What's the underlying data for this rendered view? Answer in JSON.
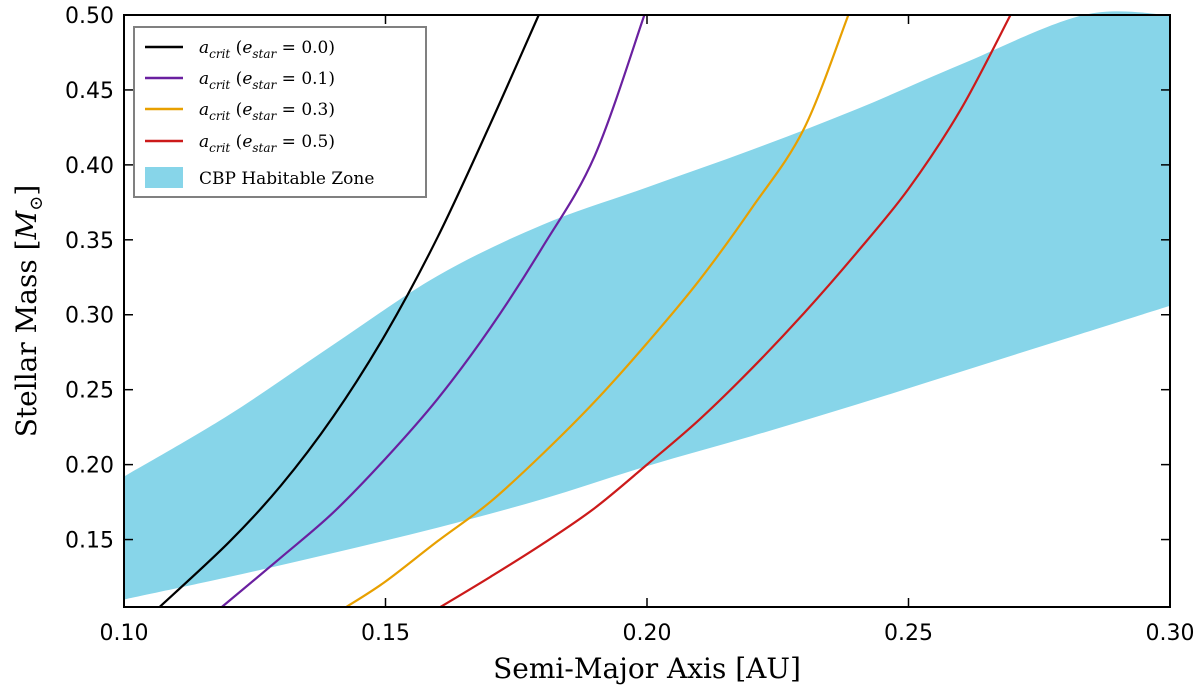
{
  "chart_data": {
    "type": "line",
    "xlabel": "Semi-Major Axis [AU]",
    "ylabel": "Stellar Mass [M☉]",
    "ylabel_text": "Stellar Mass [",
    "ylabel_symbol": "M",
    "ylabel_sub": "⊙",
    "ylabel_close": "]",
    "xlim": [
      0.1,
      0.3
    ],
    "ylim": [
      0.105,
      0.5
    ],
    "xticks": [
      0.1,
      0.15,
      0.2,
      0.25,
      0.3
    ],
    "xtick_labels": [
      "0.10",
      "0.15",
      "0.20",
      "0.25",
      "0.30"
    ],
    "yticks": [
      0.15,
      0.2,
      0.25,
      0.3,
      0.35,
      0.4,
      0.45,
      0.5
    ],
    "ytick_labels": [
      "0.15",
      "0.20",
      "0.25",
      "0.30",
      "0.35",
      "0.40",
      "0.45",
      "0.50"
    ],
    "grid": false,
    "legend_position": "top-left",
    "series": [
      {
        "name": "a_crit (e_star = 0.0)",
        "sym": "a",
        "sub": "crit",
        "param": "e",
        "param_sub": "star",
        "value": "0.0",
        "color": "#000000",
        "x": [
          0.1068,
          0.12,
          0.13,
          0.14,
          0.15,
          0.16,
          0.17,
          0.1793
        ],
        "y": [
          0.105,
          0.148,
          0.186,
          0.232,
          0.287,
          0.352,
          0.427,
          0.5
        ]
      },
      {
        "name": "a_crit (e_star = 0.1)",
        "sym": "a",
        "sub": "crit",
        "param": "e",
        "param_sub": "star",
        "value": "0.1",
        "color": "#6a20a0",
        "x": [
          0.1187,
          0.13,
          0.14,
          0.15,
          0.16,
          0.17,
          0.18,
          0.19,
          0.1995
        ],
        "y": [
          0.105,
          0.138,
          0.168,
          0.204,
          0.244,
          0.291,
          0.345,
          0.406,
          0.5
        ]
      },
      {
        "name": "a_crit (e_star = 0.3)",
        "sym": "a",
        "sub": "crit",
        "param": "e",
        "param_sub": "star",
        "value": "0.3",
        "color": "#e8a000",
        "x": [
          0.1425,
          0.15,
          0.16,
          0.17,
          0.18,
          0.19,
          0.2,
          0.21,
          0.22,
          0.23,
          0.2385
        ],
        "y": [
          0.105,
          0.122,
          0.149,
          0.175,
          0.207,
          0.242,
          0.281,
          0.323,
          0.371,
          0.424,
          0.5
        ]
      },
      {
        "name": "a_crit (e_star = 0.5)",
        "sym": "a",
        "sub": "crit",
        "param": "e",
        "param_sub": "star",
        "value": "0.5",
        "color": "#cc1a1a",
        "x": [
          0.1605,
          0.17,
          0.18,
          0.19,
          0.2,
          0.21,
          0.22,
          0.23,
          0.24,
          0.25,
          0.26,
          0.2695
        ],
        "y": [
          0.105,
          0.125,
          0.147,
          0.171,
          0.2,
          0.23,
          0.264,
          0.301,
          0.341,
          0.384,
          0.437,
          0.5
        ]
      }
    ],
    "habitable_zone": {
      "name": "CBP Habitable Zone",
      "color": "#87d5e9",
      "upper": {
        "x": [
          0.1,
          0.12,
          0.14,
          0.16,
          0.18,
          0.2,
          0.22,
          0.24,
          0.26,
          0.2835,
          0.3
        ],
        "y": [
          0.192,
          0.233,
          0.28,
          0.326,
          0.36,
          0.385,
          0.41,
          0.437,
          0.467,
          0.5,
          0.5
        ]
      },
      "lower": {
        "x": [
          0.1,
          0.12,
          0.14,
          0.16,
          0.18,
          0.2,
          0.22,
          0.24,
          0.26,
          0.28,
          0.3
        ],
        "y": [
          0.11,
          0.125,
          0.141,
          0.158,
          0.177,
          0.199,
          0.219,
          0.24,
          0.262,
          0.284,
          0.306
        ]
      }
    }
  }
}
